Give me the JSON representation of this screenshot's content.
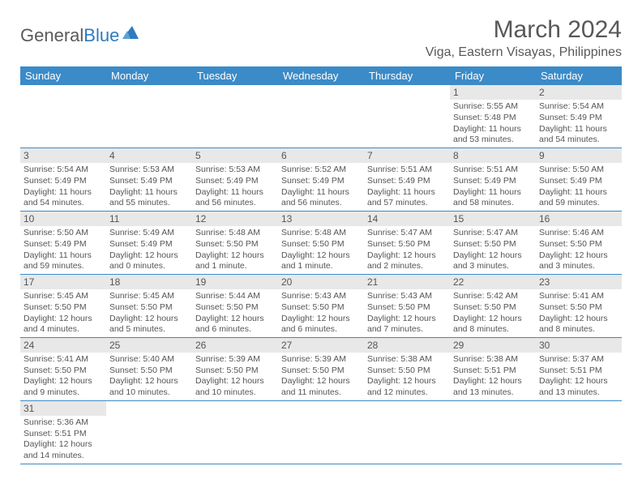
{
  "logo": {
    "text1": "General",
    "text2": "Blue"
  },
  "title": "March 2024",
  "location": "Viga, Eastern Visayas, Philippines",
  "day_headers": [
    "Sunday",
    "Monday",
    "Tuesday",
    "Wednesday",
    "Thursday",
    "Friday",
    "Saturday"
  ],
  "colors": {
    "header_bg": "#3b8bc8",
    "daynum_bg": "#e8e8e8",
    "text": "#555555",
    "border": "#3b8bc8"
  },
  "weeks": [
    [
      null,
      null,
      null,
      null,
      null,
      {
        "n": "1",
        "sr": "5:55 AM",
        "ss": "5:48 PM",
        "dl": "11 hours and 53 minutes."
      },
      {
        "n": "2",
        "sr": "5:54 AM",
        "ss": "5:49 PM",
        "dl": "11 hours and 54 minutes."
      }
    ],
    [
      {
        "n": "3",
        "sr": "5:54 AM",
        "ss": "5:49 PM",
        "dl": "11 hours and 54 minutes."
      },
      {
        "n": "4",
        "sr": "5:53 AM",
        "ss": "5:49 PM",
        "dl": "11 hours and 55 minutes."
      },
      {
        "n": "5",
        "sr": "5:53 AM",
        "ss": "5:49 PM",
        "dl": "11 hours and 56 minutes."
      },
      {
        "n": "6",
        "sr": "5:52 AM",
        "ss": "5:49 PM",
        "dl": "11 hours and 56 minutes."
      },
      {
        "n": "7",
        "sr": "5:51 AM",
        "ss": "5:49 PM",
        "dl": "11 hours and 57 minutes."
      },
      {
        "n": "8",
        "sr": "5:51 AM",
        "ss": "5:49 PM",
        "dl": "11 hours and 58 minutes."
      },
      {
        "n": "9",
        "sr": "5:50 AM",
        "ss": "5:49 PM",
        "dl": "11 hours and 59 minutes."
      }
    ],
    [
      {
        "n": "10",
        "sr": "5:50 AM",
        "ss": "5:49 PM",
        "dl": "11 hours and 59 minutes."
      },
      {
        "n": "11",
        "sr": "5:49 AM",
        "ss": "5:49 PM",
        "dl": "12 hours and 0 minutes."
      },
      {
        "n": "12",
        "sr": "5:48 AM",
        "ss": "5:50 PM",
        "dl": "12 hours and 1 minute."
      },
      {
        "n": "13",
        "sr": "5:48 AM",
        "ss": "5:50 PM",
        "dl": "12 hours and 1 minute."
      },
      {
        "n": "14",
        "sr": "5:47 AM",
        "ss": "5:50 PM",
        "dl": "12 hours and 2 minutes."
      },
      {
        "n": "15",
        "sr": "5:47 AM",
        "ss": "5:50 PM",
        "dl": "12 hours and 3 minutes."
      },
      {
        "n": "16",
        "sr": "5:46 AM",
        "ss": "5:50 PM",
        "dl": "12 hours and 3 minutes."
      }
    ],
    [
      {
        "n": "17",
        "sr": "5:45 AM",
        "ss": "5:50 PM",
        "dl": "12 hours and 4 minutes."
      },
      {
        "n": "18",
        "sr": "5:45 AM",
        "ss": "5:50 PM",
        "dl": "12 hours and 5 minutes."
      },
      {
        "n": "19",
        "sr": "5:44 AM",
        "ss": "5:50 PM",
        "dl": "12 hours and 6 minutes."
      },
      {
        "n": "20",
        "sr": "5:43 AM",
        "ss": "5:50 PM",
        "dl": "12 hours and 6 minutes."
      },
      {
        "n": "21",
        "sr": "5:43 AM",
        "ss": "5:50 PM",
        "dl": "12 hours and 7 minutes."
      },
      {
        "n": "22",
        "sr": "5:42 AM",
        "ss": "5:50 PM",
        "dl": "12 hours and 8 minutes."
      },
      {
        "n": "23",
        "sr": "5:41 AM",
        "ss": "5:50 PM",
        "dl": "12 hours and 8 minutes."
      }
    ],
    [
      {
        "n": "24",
        "sr": "5:41 AM",
        "ss": "5:50 PM",
        "dl": "12 hours and 9 minutes."
      },
      {
        "n": "25",
        "sr": "5:40 AM",
        "ss": "5:50 PM",
        "dl": "12 hours and 10 minutes."
      },
      {
        "n": "26",
        "sr": "5:39 AM",
        "ss": "5:50 PM",
        "dl": "12 hours and 10 minutes."
      },
      {
        "n": "27",
        "sr": "5:39 AM",
        "ss": "5:50 PM",
        "dl": "12 hours and 11 minutes."
      },
      {
        "n": "28",
        "sr": "5:38 AM",
        "ss": "5:50 PM",
        "dl": "12 hours and 12 minutes."
      },
      {
        "n": "29",
        "sr": "5:38 AM",
        "ss": "5:51 PM",
        "dl": "12 hours and 13 minutes."
      },
      {
        "n": "30",
        "sr": "5:37 AM",
        "ss": "5:51 PM",
        "dl": "12 hours and 13 minutes."
      }
    ],
    [
      {
        "n": "31",
        "sr": "5:36 AM",
        "ss": "5:51 PM",
        "dl": "12 hours and 14 minutes."
      },
      null,
      null,
      null,
      null,
      null,
      null
    ]
  ],
  "labels": {
    "sunrise": "Sunrise: ",
    "sunset": "Sunset: ",
    "daylight": "Daylight: "
  }
}
